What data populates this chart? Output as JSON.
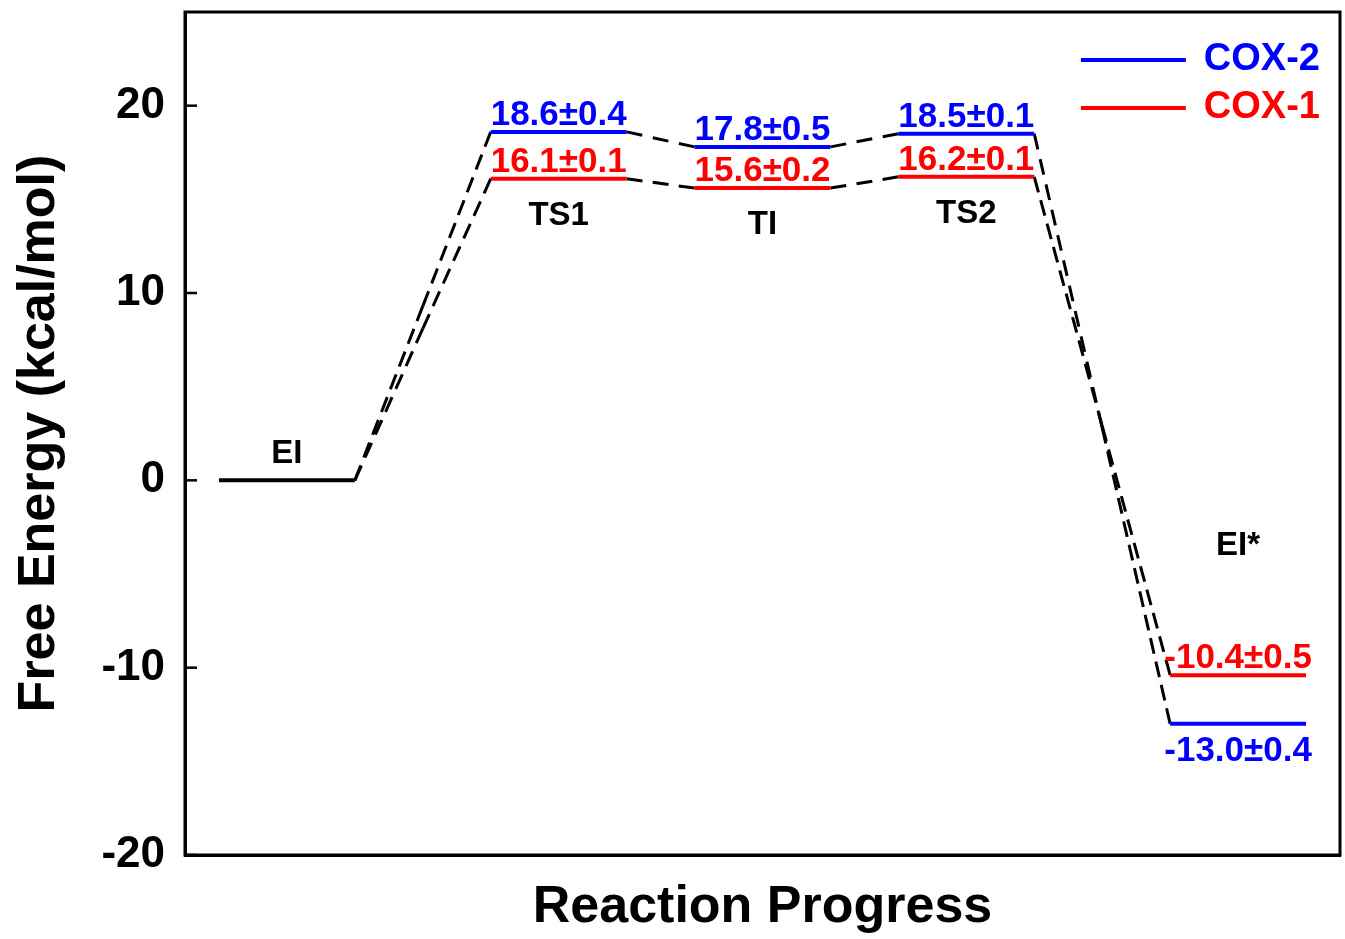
{
  "chart_data": {
    "type": "line",
    "xlabel": "Reaction Progress",
    "ylabel": "Free Energy (kcal/mol)",
    "categories": [
      null,
      null,
      null,
      null,
      null,
      null,
      null,
      null,
      null,
      null,
      null,
      null,
      null,
      null,
      null,
      null,
      null
    ],
    "ylim": [
      -20,
      25
    ],
    "yticks": [
      -20,
      -10,
      0,
      10,
      20
    ],
    "tick_labels": "y",
    "legend": "top right",
    "marker": "none",
    "series": [
      {
        "color": "#000000",
        "values": [
          0,
          0,
          0,
          null,
          null,
          null,
          null,
          null,
          null,
          null,
          null,
          null,
          null,
          null,
          null,
          null,
          null
        ]
      },
      {
        "name": "COX-2",
        "color": "#0000ff",
        "values": [
          null,
          null,
          null,
          null,
          18.6,
          18.6,
          18.6,
          null,
          null,
          null,
          null,
          null,
          null,
          null,
          null,
          null,
          null
        ],
        "value_labels": [
          null,
          null,
          null,
          null,
          null,
          "18.6±0.4",
          null,
          null,
          null,
          null,
          null,
          null,
          null,
          null,
          null,
          null,
          null
        ]
      },
      {
        "color": "#0000ff",
        "values": [
          null,
          null,
          null,
          null,
          null,
          null,
          null,
          17.8,
          17.8,
          17.8,
          null,
          null,
          null,
          null,
          null,
          null,
          null
        ],
        "value_labels": [
          null,
          null,
          null,
          null,
          null,
          null,
          null,
          null,
          "17.8±0.5",
          null,
          null,
          null,
          null,
          null,
          null,
          null,
          null
        ]
      },
      {
        "color": "#0000ff",
        "values": [
          null,
          null,
          null,
          null,
          null,
          null,
          null,
          null,
          null,
          null,
          18.5,
          18.5,
          18.5,
          null,
          null,
          null,
          null
        ],
        "value_labels": [
          null,
          null,
          null,
          null,
          null,
          null,
          null,
          null,
          null,
          null,
          null,
          "18.5±0.1",
          null,
          null,
          null,
          null,
          null
        ]
      },
      {
        "color": "#0000ff",
        "values": [
          null,
          null,
          null,
          null,
          null,
          null,
          null,
          null,
          null,
          null,
          null,
          null,
          null,
          null,
          -13.0,
          -13.0,
          -13.0
        ],
        "value_labels": [
          null,
          null,
          null,
          null,
          null,
          null,
          null,
          null,
          null,
          null,
          null,
          null,
          null,
          null,
          null,
          "-13.0±0.4",
          null
        ]
      },
      {
        "name": "COX-1",
        "color": "#ff0000",
        "values": [
          null,
          null,
          null,
          null,
          16.1,
          16.1,
          16.1,
          null,
          null,
          null,
          null,
          null,
          null,
          null,
          null,
          null,
          null
        ],
        "value_labels": [
          null,
          null,
          null,
          null,
          null,
          "16.1±0.1",
          null,
          null,
          null,
          null,
          null,
          null,
          null,
          null,
          null,
          null,
          null
        ]
      },
      {
        "color": "#ff0000",
        "values": [
          null,
          null,
          null,
          null,
          null,
          null,
          null,
          15.6,
          15.6,
          15.6,
          null,
          null,
          null,
          null,
          null,
          null,
          null
        ],
        "value_labels": [
          null,
          null,
          null,
          null,
          null,
          null,
          null,
          null,
          "15.6±0.2",
          null,
          null,
          null,
          null,
          null,
          null,
          null,
          null
        ]
      },
      {
        "color": "#ff0000",
        "values": [
          null,
          null,
          null,
          null,
          null,
          null,
          null,
          null,
          null,
          null,
          16.2,
          16.2,
          16.2,
          null,
          null,
          null,
          null
        ],
        "value_labels": [
          null,
          null,
          null,
          null,
          null,
          null,
          null,
          null,
          null,
          null,
          null,
          "16.2±0.1",
          null,
          null,
          null,
          null,
          null
        ]
      },
      {
        "color": "#ff0000",
        "values": [
          null,
          null,
          null,
          null,
          null,
          null,
          null,
          null,
          null,
          null,
          null,
          null,
          null,
          null,
          -10.4,
          -10.4,
          -10.4
        ],
        "value_labels": [
          null,
          null,
          null,
          null,
          null,
          null,
          null,
          null,
          null,
          null,
          null,
          null,
          null,
          null,
          null,
          "-10.4±0.5",
          null
        ]
      },
      {
        "color": "#000000",
        "line_style": "dashed",
        "values": [
          null,
          null,
          0,
          9.3,
          18.6,
          null,
          18.6,
          17.8,
          null,
          17.8,
          18.5,
          null,
          18.5,
          2.8,
          -13.0,
          null,
          null
        ]
      },
      {
        "color": "#000000",
        "line_style": "dashed",
        "values": [
          null,
          null,
          0,
          8.1,
          16.1,
          null,
          16.1,
          15.6,
          null,
          15.6,
          16.2,
          null,
          16.2,
          2.9,
          -10.4,
          null,
          null
        ]
      }
    ],
    "annotations": [
      "EI",
      "TS1",
      "TI",
      "TS2",
      "EI*"
    ]
  }
}
